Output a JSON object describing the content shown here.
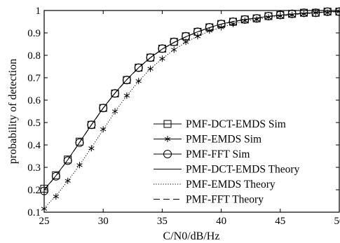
{
  "chart_data": {
    "type": "line",
    "title": "",
    "xlabel": "C/N0/dB/Hz",
    "ylabel": "probability of detection",
    "xlim": [
      25,
      50
    ],
    "ylim": [
      0.1,
      1
    ],
    "xticks": [
      25,
      30,
      35,
      40,
      45,
      50
    ],
    "yticks": [
      0.1,
      0.2,
      0.3,
      0.4,
      0.5,
      0.6,
      0.7,
      0.8,
      0.9,
      1
    ],
    "grid": false,
    "legend_position": "bottom-right",
    "x": [
      25,
      26,
      27,
      28,
      29,
      30,
      31,
      32,
      33,
      34,
      35,
      36,
      37,
      38,
      39,
      40,
      41,
      42,
      43,
      44,
      45,
      46,
      47,
      48,
      49,
      50
    ],
    "series": [
      {
        "name": "PMF-DCT-EMDS Sim",
        "marker": "square",
        "line": "none",
        "values": [
          0.205,
          0.265,
          0.335,
          0.415,
          0.49,
          0.565,
          0.63,
          0.69,
          0.745,
          0.79,
          0.83,
          0.86,
          0.885,
          0.905,
          0.925,
          0.94,
          0.95,
          0.96,
          0.965,
          0.975,
          0.98,
          0.985,
          0.99,
          0.99,
          0.995,
          0.995
        ]
      },
      {
        "name": "PMF-EMDS Sim",
        "marker": "star",
        "line": "none",
        "values": [
          0.115,
          0.17,
          0.24,
          0.31,
          0.385,
          0.47,
          0.55,
          0.62,
          0.685,
          0.74,
          0.785,
          0.825,
          0.86,
          0.885,
          0.91,
          0.925,
          0.94,
          0.955,
          0.96,
          0.97,
          0.975,
          0.98,
          0.985,
          0.99,
          0.99,
          0.995
        ]
      },
      {
        "name": "PMF-FFT Sim",
        "marker": "circle",
        "line": "none",
        "values": [
          0.195,
          0.26,
          0.33,
          0.41,
          0.49,
          0.565,
          0.63,
          0.69,
          0.745,
          0.79,
          0.83,
          0.86,
          0.885,
          0.905,
          0.925,
          0.94,
          0.95,
          0.96,
          0.965,
          0.975,
          0.98,
          0.985,
          0.99,
          0.99,
          0.995,
          0.995
        ]
      },
      {
        "name": "PMF-DCT-EMDS Theory",
        "marker": "none",
        "line": "solid",
        "values": [
          0.2,
          0.263,
          0.334,
          0.412,
          0.49,
          0.565,
          0.632,
          0.692,
          0.745,
          0.79,
          0.828,
          0.858,
          0.883,
          0.905,
          0.924,
          0.94,
          0.951,
          0.96,
          0.967,
          0.974,
          0.979,
          0.984,
          0.988,
          0.991,
          0.994,
          0.996
        ]
      },
      {
        "name": "PMF-EMDS Theory",
        "marker": "none",
        "line": "dotted",
        "values": [
          0.118,
          0.173,
          0.239,
          0.31,
          0.388,
          0.468,
          0.548,
          0.62,
          0.684,
          0.74,
          0.785,
          0.825,
          0.858,
          0.885,
          0.908,
          0.925,
          0.94,
          0.952,
          0.961,
          0.969,
          0.975,
          0.98,
          0.985,
          0.989,
          0.992,
          0.995
        ]
      },
      {
        "name": "PMF-FFT Theory",
        "marker": "none",
        "line": "dashed",
        "values": [
          0.198,
          0.262,
          0.333,
          0.411,
          0.489,
          0.564,
          0.631,
          0.691,
          0.744,
          0.789,
          0.827,
          0.857,
          0.882,
          0.904,
          0.923,
          0.939,
          0.95,
          0.959,
          0.966,
          0.973,
          0.978,
          0.983,
          0.987,
          0.99,
          0.993,
          0.995
        ]
      }
    ]
  }
}
